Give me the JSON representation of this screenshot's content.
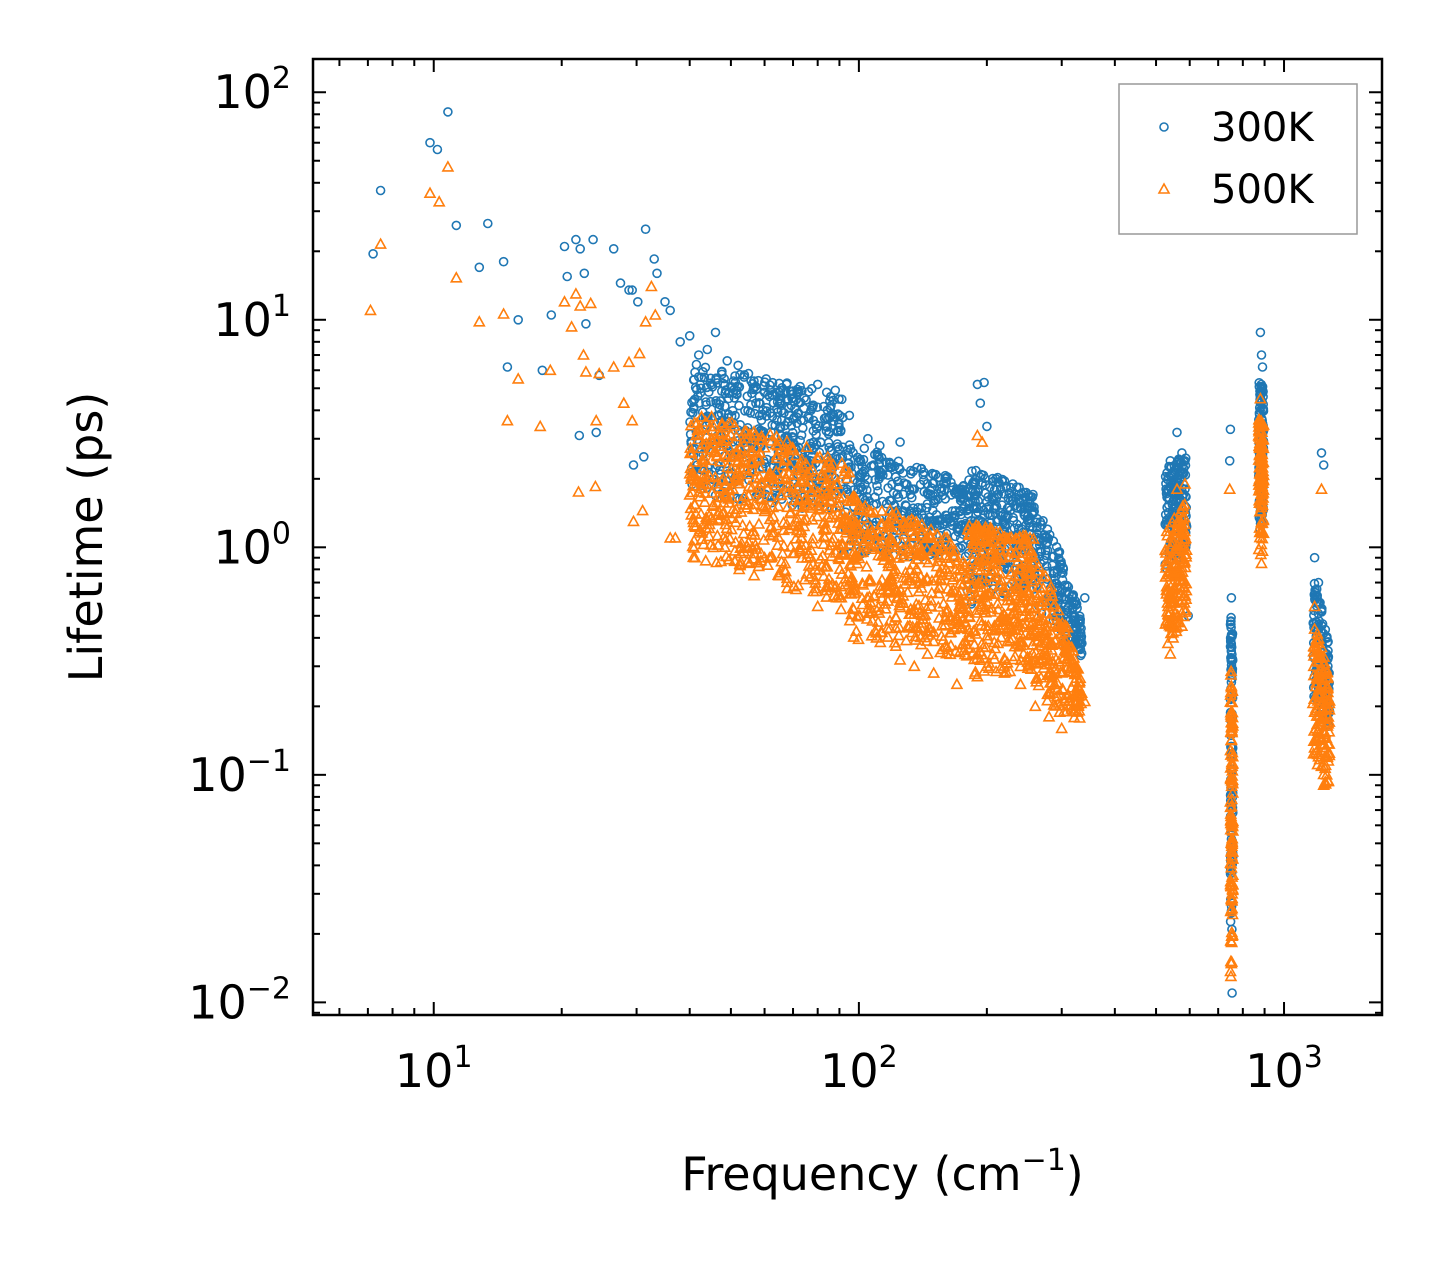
{
  "chart_data": {
    "type": "scatter",
    "title": "",
    "xscale": "log",
    "yscale": "log",
    "xlabel": "Frequency (cm",
    "xlabel_sup": "−1",
    "xlabel_end": ")",
    "ylabel": "Lifetime (ps)",
    "xlim": [
      5.2,
      1700
    ],
    "ylim": [
      0.0088,
      140
    ],
    "x_ticks": [
      {
        "value": 10,
        "base": "10",
        "exp": "1"
      },
      {
        "value": 100,
        "base": "10",
        "exp": "2"
      },
      {
        "value": 1000,
        "base": "10",
        "exp": "3"
      }
    ],
    "y_ticks": [
      {
        "value": 0.01,
        "base": "10",
        "exp": "−2"
      },
      {
        "value": 0.1,
        "base": "10",
        "exp": "−1"
      },
      {
        "value": 1,
        "base": "10",
        "exp": "0"
      },
      {
        "value": 10,
        "base": "10",
        "exp": "1"
      },
      {
        "value": 100,
        "base": "10",
        "exp": "2"
      }
    ],
    "legend_position": "top-right",
    "series": [
      {
        "name": "300K",
        "marker": "circle",
        "color": "#1f77b4",
        "points": [
          [
            7.2,
            19.5
          ],
          [
            7.5,
            37
          ],
          [
            9.8,
            60
          ],
          [
            10.2,
            56
          ],
          [
            10.8,
            82
          ],
          [
            11.3,
            26
          ],
          [
            12.8,
            17
          ],
          [
            13.4,
            26.5
          ],
          [
            14.6,
            18
          ],
          [
            14.9,
            6.2
          ],
          [
            15.8,
            10
          ],
          [
            18,
            6
          ],
          [
            18.9,
            10.5
          ],
          [
            20.3,
            21
          ],
          [
            20.6,
            15.5
          ],
          [
            21.6,
            22.5
          ],
          [
            22.1,
            20.5
          ],
          [
            22.6,
            16
          ],
          [
            22.8,
            9.6
          ],
          [
            23.7,
            22.5
          ],
          [
            24.5,
            5.7
          ],
          [
            26.5,
            20.5
          ],
          [
            27.5,
            14.5
          ],
          [
            28.8,
            13.5
          ],
          [
            29.3,
            13.5
          ],
          [
            30.2,
            12
          ],
          [
            31.5,
            25
          ],
          [
            31.2,
            2.5
          ],
          [
            22,
            3.1
          ],
          [
            24.1,
            3.2
          ],
          [
            29.5,
            2.3
          ],
          [
            33.5,
            16
          ],
          [
            33,
            18.5
          ],
          [
            35,
            12
          ],
          [
            36,
            11
          ],
          [
            38,
            8
          ],
          [
            40,
            8.5
          ],
          [
            42,
            7
          ],
          [
            44,
            7.4
          ],
          [
            46,
            8.8
          ],
          [
            49,
            6.6
          ],
          [
            52,
            6.3
          ],
          [
            55,
            5.8
          ],
          [
            58,
            5.4
          ],
          [
            60,
            4.8
          ],
          [
            65,
            4.5
          ],
          [
            72,
            4.8
          ],
          [
            80,
            5.2
          ],
          [
            88,
            4.9
          ],
          [
            95,
            3.8
          ],
          [
            105,
            3
          ],
          [
            112,
            2.8
          ],
          [
            125,
            2.9
          ],
          [
            135,
            1.8
          ],
          [
            150,
            1.6
          ],
          [
            165,
            1.7
          ],
          [
            175,
            1.8
          ],
          [
            185,
            1.9
          ],
          [
            190,
            5.2
          ],
          [
            193,
            4.3
          ],
          [
            197,
            5.3
          ],
          [
            200,
            3.4
          ],
          [
            210,
            2
          ],
          [
            230,
            1.6
          ],
          [
            250,
            1.7
          ],
          [
            275,
            1.1
          ],
          [
            300,
            0.6
          ],
          [
            320,
            0.5
          ],
          [
            340,
            0.6
          ],
          [
            540,
            2.4
          ],
          [
            548,
            2.1
          ],
          [
            560,
            3.2
          ],
          [
            575,
            2.6
          ],
          [
            585,
            1.8
          ],
          [
            595,
            0.5
          ],
          [
            745,
            2.4
          ],
          [
            748,
            3.3
          ],
          [
            752,
            0.6
          ],
          [
            755,
            0.011
          ],
          [
            880,
            8.8
          ],
          [
            885,
            7
          ],
          [
            890,
            6.2
          ],
          [
            1180,
            0.9
          ],
          [
            1205,
            0.7
          ],
          [
            1225,
            2.6
          ],
          [
            1240,
            2.3
          ],
          [
            1260,
            0.4
          ]
        ]
      },
      {
        "name": "500K",
        "marker": "triangle",
        "color": "#ff7f0e",
        "points": [
          [
            7.1,
            11
          ],
          [
            7.5,
            21.5
          ],
          [
            9.8,
            36
          ],
          [
            10.3,
            33
          ],
          [
            10.8,
            47
          ],
          [
            11.3,
            15.3
          ],
          [
            12.8,
            9.8
          ],
          [
            14.6,
            10.6
          ],
          [
            14.9,
            3.6
          ],
          [
            15.8,
            5.5
          ],
          [
            17.8,
            3.4
          ],
          [
            18.8,
            6
          ],
          [
            20.3,
            12
          ],
          [
            21.1,
            9.3
          ],
          [
            21.6,
            13
          ],
          [
            22.1,
            11.5
          ],
          [
            22.5,
            7
          ],
          [
            22.8,
            5.9
          ],
          [
            23.4,
            11.8
          ],
          [
            24.1,
            3.6
          ],
          [
            24.5,
            5.8
          ],
          [
            26.5,
            6.2
          ],
          [
            28,
            4.3
          ],
          [
            28.8,
            6.5
          ],
          [
            29.3,
            3.6
          ],
          [
            30.5,
            7.1
          ],
          [
            31.5,
            9.8
          ],
          [
            32.5,
            14
          ],
          [
            33.2,
            10.5
          ],
          [
            21.9,
            1.75
          ],
          [
            24,
            1.85
          ],
          [
            29.5,
            1.3
          ],
          [
            31,
            1.45
          ],
          [
            37,
            1.1
          ],
          [
            36,
            1.1
          ],
          [
            40,
            1.7
          ],
          [
            45,
            1.35
          ],
          [
            48,
            1.1
          ],
          [
            55,
            1.05
          ],
          [
            60,
            0.9
          ],
          [
            65,
            0.75
          ],
          [
            72,
            0.68
          ],
          [
            80,
            0.55
          ],
          [
            90,
            0.6
          ],
          [
            100,
            0.5
          ],
          [
            110,
            0.4
          ],
          [
            125,
            0.32
          ],
          [
            135,
            0.3
          ],
          [
            150,
            0.28
          ],
          [
            170,
            0.25
          ],
          [
            190,
            0.27
          ],
          [
            200,
            0.3
          ],
          [
            220,
            0.28
          ],
          [
            240,
            0.25
          ],
          [
            260,
            0.2
          ],
          [
            280,
            0.18
          ],
          [
            300,
            0.16
          ],
          [
            320,
            0.19
          ],
          [
            340,
            0.21
          ],
          [
            190,
            3.1
          ],
          [
            195,
            2.9
          ],
          [
            540,
            0.34
          ],
          [
            548,
            0.4
          ],
          [
            560,
            1.8
          ],
          [
            575,
            0.45
          ],
          [
            585,
            1.9
          ],
          [
            745,
            1.8
          ],
          [
            750,
            0.013
          ],
          [
            755,
            0.03
          ],
          [
            880,
            4.5
          ],
          [
            885,
            0.85
          ],
          [
            1180,
            0.55
          ],
          [
            1205,
            0.12
          ],
          [
            1225,
            1.8
          ],
          [
            1240,
            0.09
          ],
          [
            1260,
            0.1
          ]
        ]
      }
    ],
    "bands": [
      {
        "series": "300K",
        "x0": 40,
        "x1": 92,
        "ymin_at_x0": 1.7,
        "ymin_at_x1": 1.4,
        "ymax_at_x0": 6.5,
        "ymax_at_x1": 4.6,
        "count": 520
      },
      {
        "series": "300K",
        "x0": 92,
        "x1": 180,
        "ymin_at_x0": 0.9,
        "ymin_at_x1": 0.9,
        "ymax_at_x0": 2.9,
        "ymax_at_x1": 1.9,
        "count": 360
      },
      {
        "series": "300K",
        "x0": 180,
        "x1": 260,
        "ymin_at_x0": 0.55,
        "ymin_at_x1": 0.65,
        "ymax_at_x0": 2.3,
        "ymax_at_x1": 1.7,
        "count": 300
      },
      {
        "series": "300K",
        "x0": 260,
        "x1": 335,
        "ymin_at_x0": 0.45,
        "ymin_at_x1": 0.33,
        "ymax_at_x0": 1.5,
        "ymax_at_x1": 0.45,
        "count": 180
      },
      {
        "series": "300K",
        "x0": 525,
        "x1": 590,
        "ymin_at_x0": 0.7,
        "ymin_at_x1": 1.0,
        "ymax_at_x0": 2.2,
        "ymax_at_x1": 2.6,
        "count": 160
      },
      {
        "series": "300K",
        "x0": 748,
        "x1": 758,
        "ymin_at_x0": 0.02,
        "ymin_at_x1": 0.02,
        "ymax_at_x0": 0.55,
        "ymax_at_x1": 0.4,
        "count": 110
      },
      {
        "series": "300K",
        "x0": 872,
        "x1": 895,
        "ymin_at_x0": 1.2,
        "ymin_at_x1": 1.1,
        "ymax_at_x0": 5.5,
        "ymax_at_x1": 5.0,
        "count": 110
      },
      {
        "series": "300K",
        "x0": 1170,
        "x1": 1280,
        "ymin_at_x0": 0.2,
        "ymin_at_x1": 0.15,
        "ymax_at_x0": 0.75,
        "ymax_at_x1": 0.35,
        "count": 130
      },
      {
        "series": "500K",
        "x0": 40,
        "x1": 95,
        "ymin_at_x0": 0.9,
        "ymin_at_x1": 0.5,
        "ymax_at_x0": 4.0,
        "ymax_at_x1": 2.3,
        "count": 560
      },
      {
        "series": "500K",
        "x0": 95,
        "x1": 180,
        "ymin_at_x0": 0.4,
        "ymin_at_x1": 0.3,
        "ymax_at_x0": 1.7,
        "ymax_at_x1": 1.0,
        "count": 420
      },
      {
        "series": "500K",
        "x0": 180,
        "x1": 260,
        "ymin_at_x0": 0.27,
        "ymin_at_x1": 0.28,
        "ymax_at_x0": 1.3,
        "ymax_at_x1": 1.1,
        "count": 340
      },
      {
        "series": "500K",
        "x0": 260,
        "x1": 335,
        "ymin_at_x0": 0.2,
        "ymin_at_x1": 0.17,
        "ymax_at_x0": 0.9,
        "ymax_at_x1": 0.24,
        "count": 200
      },
      {
        "series": "500K",
        "x0": 525,
        "x1": 590,
        "ymin_at_x0": 0.32,
        "ymin_at_x1": 0.5,
        "ymax_at_x0": 1.2,
        "ymax_at_x1": 1.6,
        "count": 170
      },
      {
        "series": "500K",
        "x0": 748,
        "x1": 758,
        "ymin_at_x0": 0.012,
        "ymin_at_x1": 0.015,
        "ymax_at_x0": 0.3,
        "ymax_at_x1": 0.25,
        "count": 120
      },
      {
        "series": "500K",
        "x0": 872,
        "x1": 895,
        "ymin_at_x0": 0.9,
        "ymin_at_x1": 0.85,
        "ymax_at_x0": 3.8,
        "ymax_at_x1": 3.5,
        "count": 120
      },
      {
        "series": "500K",
        "x0": 1170,
        "x1": 1280,
        "ymin_at_x0": 0.12,
        "ymin_at_x1": 0.08,
        "ymax_at_x0": 0.5,
        "ymax_at_x1": 0.25,
        "count": 140
      }
    ]
  }
}
